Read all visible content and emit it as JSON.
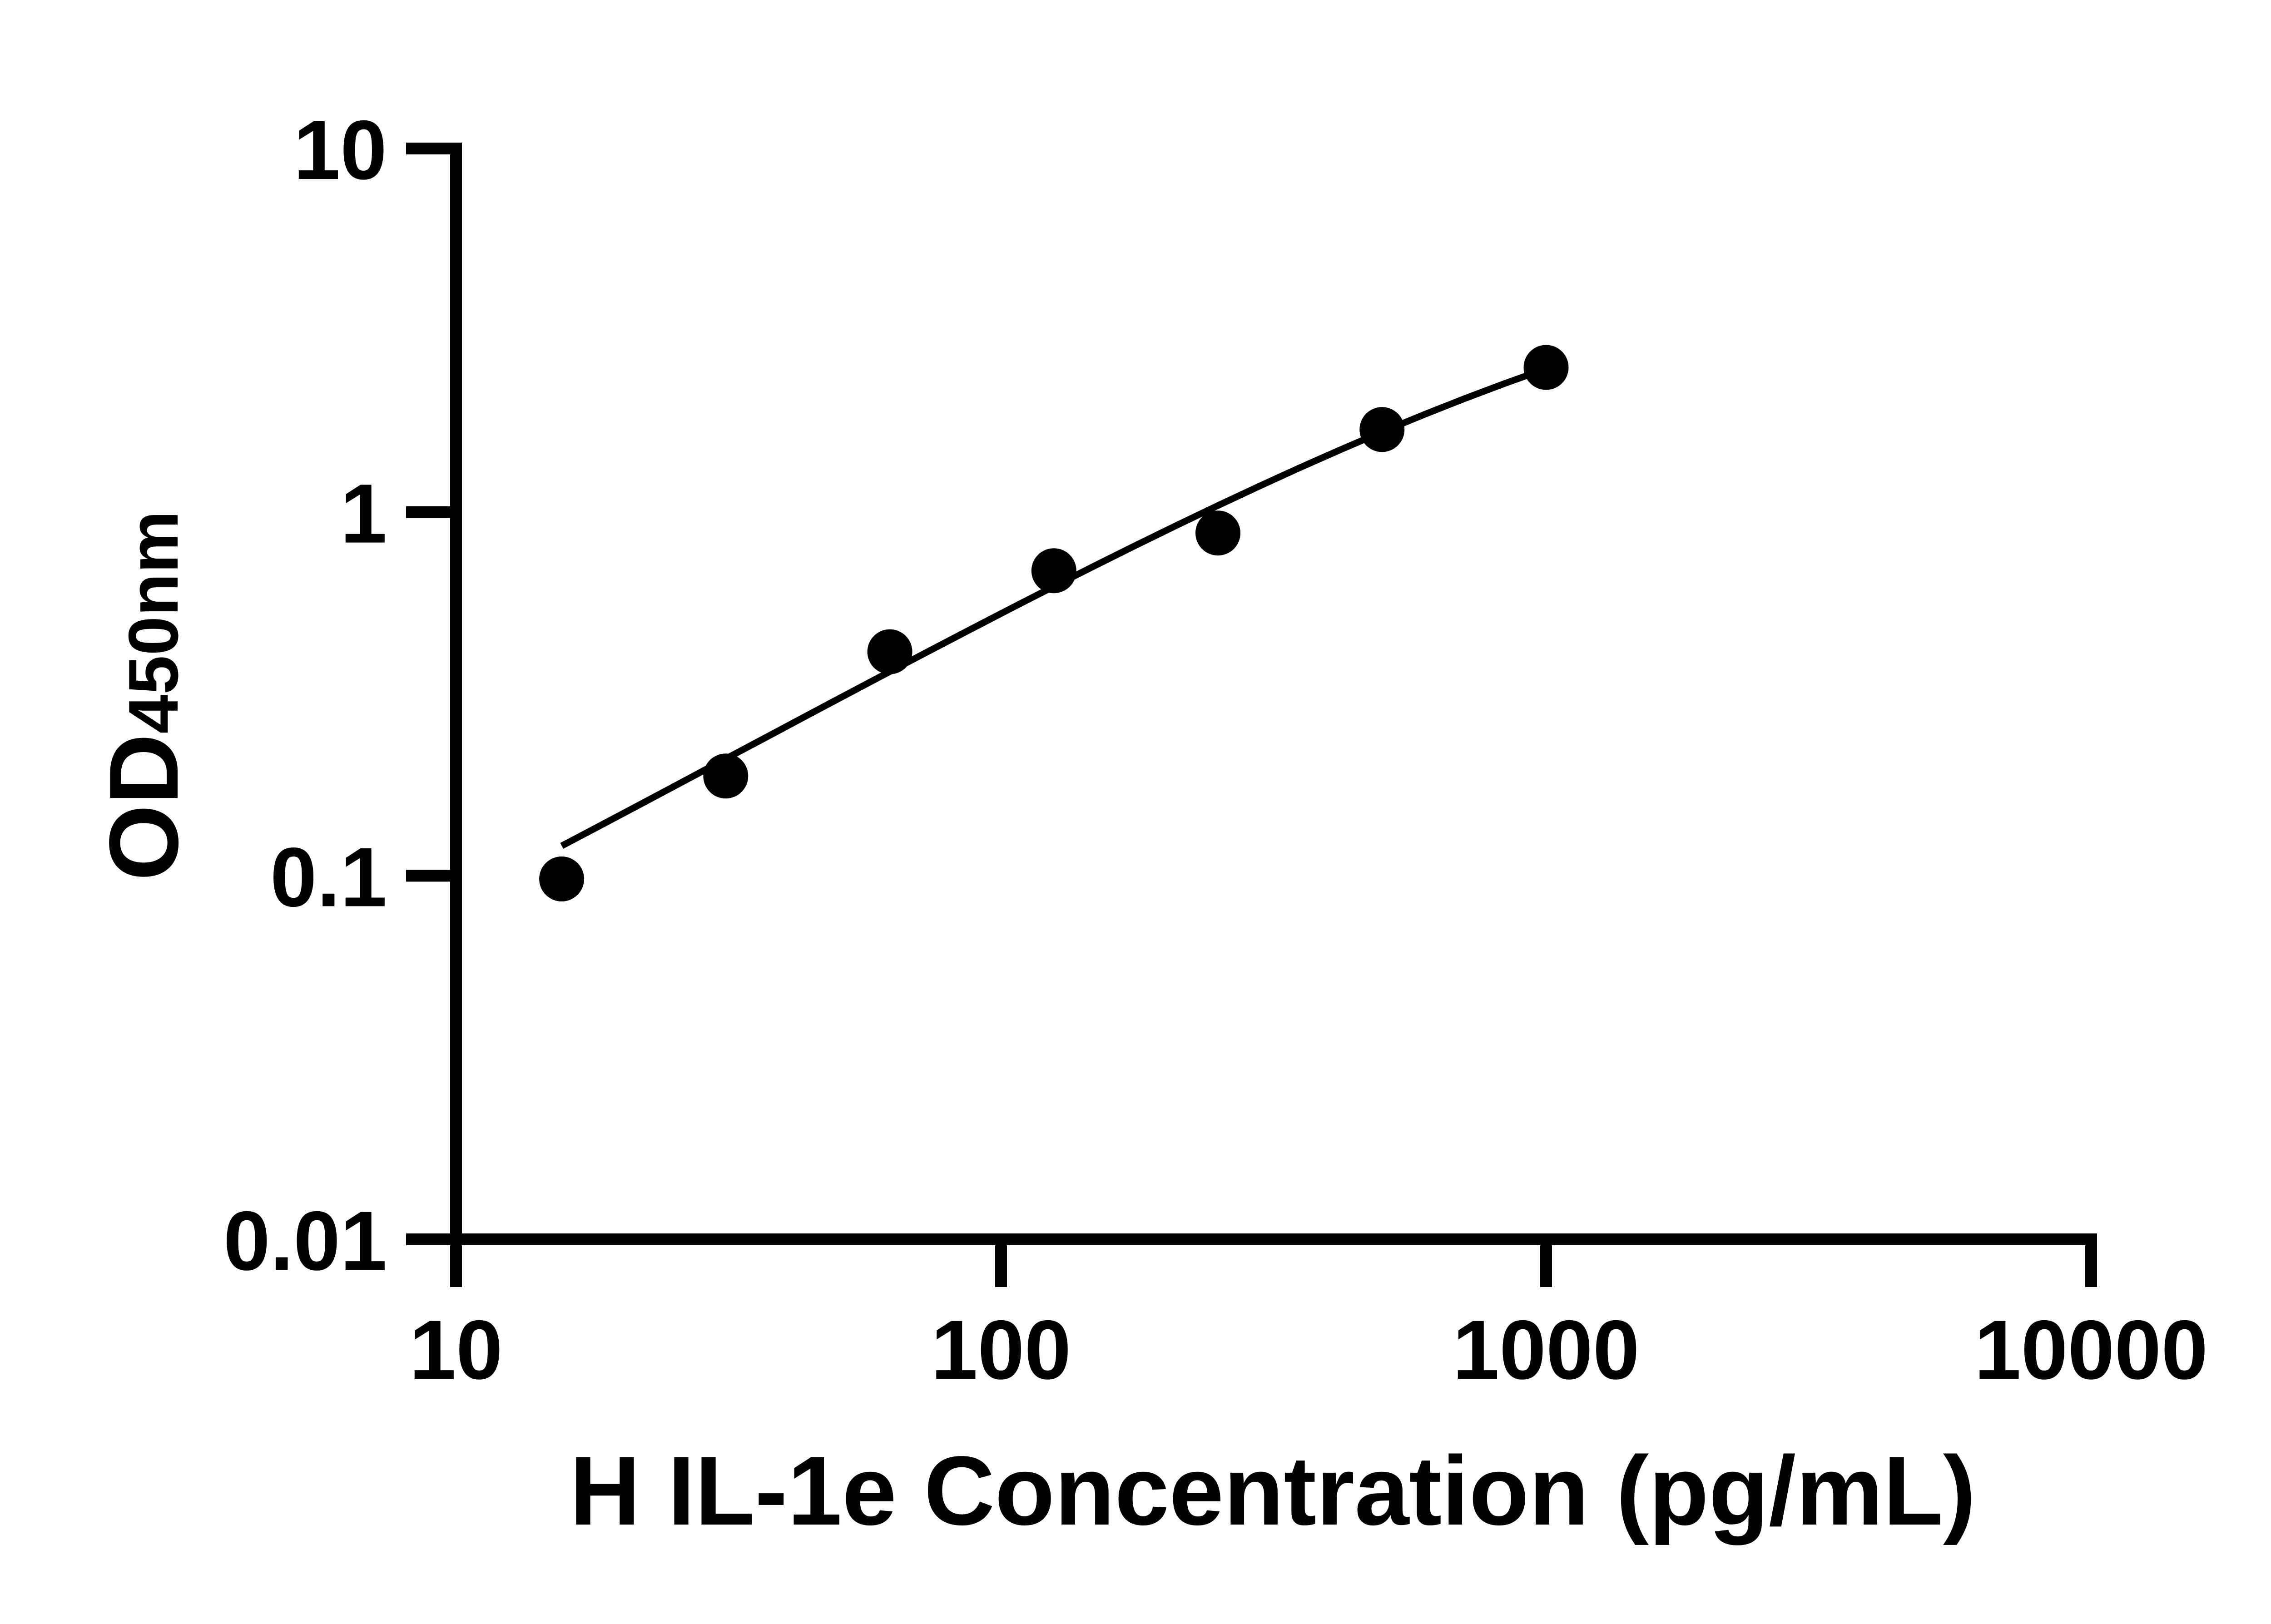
{
  "page": {
    "background_color": "#ffffff",
    "foreground_color": "#000000"
  },
  "chart_data": {
    "type": "scatter",
    "subtype": "ELISA standard curve with fitted line",
    "title": "",
    "xlabel": "H IL-1e Concentration (pg/mL)",
    "ylabel_main": "OD",
    "ylabel_sub": "450nm",
    "x_scale": "log",
    "y_scale": "log",
    "xlim": [
      10,
      10000
    ],
    "ylim": [
      0.01,
      10
    ],
    "grid": "off",
    "legend": "none",
    "x_ticks": [
      {
        "value": 10,
        "label": "10"
      },
      {
        "value": 100,
        "label": "100"
      },
      {
        "value": 1000,
        "label": "1000"
      },
      {
        "value": 10000,
        "label": "10000"
      }
    ],
    "y_ticks": [
      {
        "value": 10,
        "label": "10"
      },
      {
        "value": 1,
        "label": "1"
      },
      {
        "value": 0.1,
        "label": "0.1"
      },
      {
        "value": 0.01,
        "label": "0.01"
      }
    ],
    "series": [
      {
        "name": "standards",
        "marker": "filled-circle",
        "color": "#000000",
        "x": [
          15.625,
          31.25,
          62.5,
          125,
          250,
          500,
          1000
        ],
        "y": [
          0.098,
          0.188,
          0.413,
          0.69,
          0.876,
          1.687,
          2.5
        ]
      }
    ],
    "fit_curve": {
      "name": "four-parameter-logistic-fit",
      "color": "#000000",
      "model": "y = d + (a - d) / (1 + (x/c)^b)",
      "params": {
        "a": 0.007,
        "b": 0.854,
        "c": 1708.8,
        "d": 6.389
      },
      "points": [
        [
          15.63,
          0.1208
        ],
        [
          18.58,
          0.1385
        ],
        [
          22.1,
          0.159
        ],
        [
          26.28,
          0.1826
        ],
        [
          31.25,
          0.2097
        ],
        [
          37.16,
          0.2408
        ],
        [
          44.19,
          0.2766
        ],
        [
          52.56,
          0.3175
        ],
        [
          62.5,
          0.3642
        ],
        [
          74.33,
          0.4175
        ],
        [
          88.39,
          0.4781
        ],
        [
          105.11,
          0.5469
        ],
        [
          125.0,
          0.6247
        ],
        [
          148.65,
          0.7124
        ],
        [
          176.78,
          0.8107
        ],
        [
          210.22,
          0.9205
        ],
        [
          250.0,
          1.0426
        ],
        [
          297.3,
          1.1775
        ],
        [
          353.55,
          1.3256
        ],
        [
          420.45,
          1.4872
        ],
        [
          500.0,
          1.662
        ],
        [
          594.6,
          1.8498
        ],
        [
          707.11,
          2.0497
        ],
        [
          840.9,
          2.2604
        ],
        [
          1000.0,
          2.4806
        ]
      ]
    }
  }
}
